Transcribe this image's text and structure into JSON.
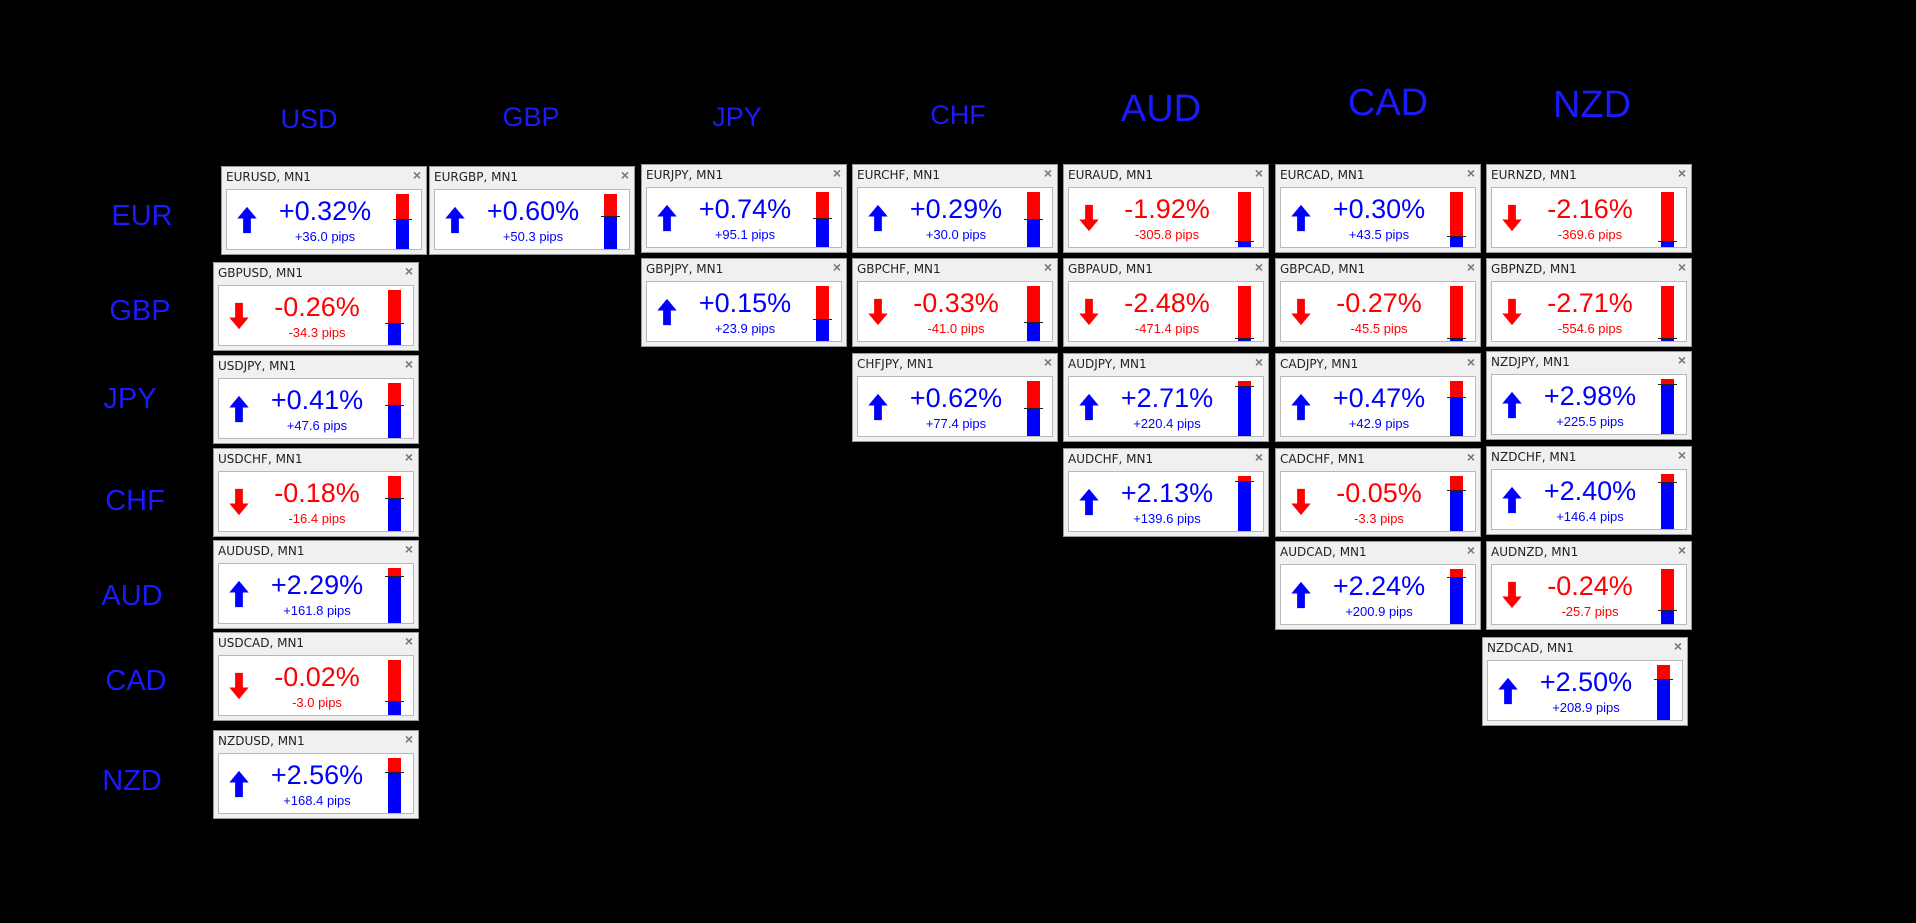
{
  "columns": [
    "USD",
    "GBP",
    "JPY",
    "CHF",
    "AUD",
    "CAD",
    "NZD"
  ],
  "rows": [
    "EUR",
    "GBP",
    "JPY",
    "CHF",
    "AUD",
    "CAD",
    "NZD"
  ],
  "colors": {
    "up": "#0000ff",
    "down": "#ff0000"
  },
  "panels": [
    {
      "title": "EURUSD, MN1",
      "pct": "+0.32%",
      "pips": "+36.0 pips",
      "dir": "up",
      "level": 0.55
    },
    {
      "title": "EURGBP, MN1",
      "pct": "+0.60%",
      "pips": "+50.3 pips",
      "dir": "up",
      "level": 0.6
    },
    {
      "title": "EURJPY, MN1",
      "pct": "+0.74%",
      "pips": "+95.1 pips",
      "dir": "up",
      "level": 0.53
    },
    {
      "title": "EURCHF, MN1",
      "pct": "+0.29%",
      "pips": "+30.0 pips",
      "dir": "up",
      "level": 0.5
    },
    {
      "title": "EURAUD, MN1",
      "pct": "-1.92%",
      "pips": "-305.8 pips",
      "dir": "down",
      "level": 0.1
    },
    {
      "title": "EURCAD, MN1",
      "pct": "+0.30%",
      "pips": "+43.5 pips",
      "dir": "up",
      "level": 0.2
    },
    {
      "title": "EURNZD, MN1",
      "pct": "-2.16%",
      "pips": "-369.6 pips",
      "dir": "down",
      "level": 0.1
    },
    {
      "title": "GBPUSD, MN1",
      "pct": "-0.26%",
      "pips": "-34.3 pips",
      "dir": "down",
      "level": 0.4
    },
    {
      "title": "GBPJPY, MN1",
      "pct": "+0.15%",
      "pips": "+23.9 pips",
      "dir": "up",
      "level": 0.4
    },
    {
      "title": "GBPCHF, MN1",
      "pct": "-0.33%",
      "pips": "-41.0 pips",
      "dir": "down",
      "level": 0.35
    },
    {
      "title": "GBPAUD, MN1",
      "pct": "-2.48%",
      "pips": "-471.4 pips",
      "dir": "down",
      "level": 0.05
    },
    {
      "title": "GBPCAD, MN1",
      "pct": "-0.27%",
      "pips": "-45.5 pips",
      "dir": "down",
      "level": 0.05
    },
    {
      "title": "GBPNZD, MN1",
      "pct": "-2.71%",
      "pips": "-554.6 pips",
      "dir": "down",
      "level": 0.05
    },
    {
      "title": "USDJPY, MN1",
      "pct": "+0.41%",
      "pips": "+47.6 pips",
      "dir": "up",
      "level": 0.6
    },
    {
      "title": "CHFJPY, MN1",
      "pct": "+0.62%",
      "pips": "+77.4 pips",
      "dir": "up",
      "level": 0.5
    },
    {
      "title": "AUDJPY, MN1",
      "pct": "+2.71%",
      "pips": "+220.4 pips",
      "dir": "up",
      "level": 0.9
    },
    {
      "title": "CADJPY, MN1",
      "pct": "+0.47%",
      "pips": "+42.9 pips",
      "dir": "up",
      "level": 0.7
    },
    {
      "title": "NZDJPY, MN1",
      "pct": "+2.98%",
      "pips": "+225.5 pips",
      "dir": "up",
      "level": 0.9
    },
    {
      "title": "USDCHF, MN1",
      "pct": "-0.18%",
      "pips": "-16.4 pips",
      "dir": "down",
      "level": 0.6
    },
    {
      "title": "AUDCHF, MN1",
      "pct": "+2.13%",
      "pips": "+139.6 pips",
      "dir": "up",
      "level": 0.9
    },
    {
      "title": "CADCHF, MN1",
      "pct": "-0.05%",
      "pips": "-3.3 pips",
      "dir": "down",
      "level": 0.75
    },
    {
      "title": "NZDCHF, MN1",
      "pct": "+2.40%",
      "pips": "+146.4 pips",
      "dir": "up",
      "level": 0.85
    },
    {
      "title": "AUDUSD, MN1",
      "pct": "+2.29%",
      "pips": "+161.8 pips",
      "dir": "up",
      "level": 0.85
    },
    {
      "title": "AUDCAD, MN1",
      "pct": "+2.24%",
      "pips": "+200.9 pips",
      "dir": "up",
      "level": 0.85
    },
    {
      "title": "AUDNZD, MN1",
      "pct": "-0.24%",
      "pips": "-25.7 pips",
      "dir": "down",
      "level": 0.25
    },
    {
      "title": "USDCAD, MN1",
      "pct": "-0.02%",
      "pips": "-3.0 pips",
      "dir": "down",
      "level": 0.25
    },
    {
      "title": "NZDCAD, MN1",
      "pct": "+2.50%",
      "pips": "+208.9 pips",
      "dir": "up",
      "level": 0.75
    },
    {
      "title": "NZDUSD, MN1",
      "pct": "+2.56%",
      "pips": "+168.4 pips",
      "dir": "up",
      "level": 0.75
    }
  ]
}
